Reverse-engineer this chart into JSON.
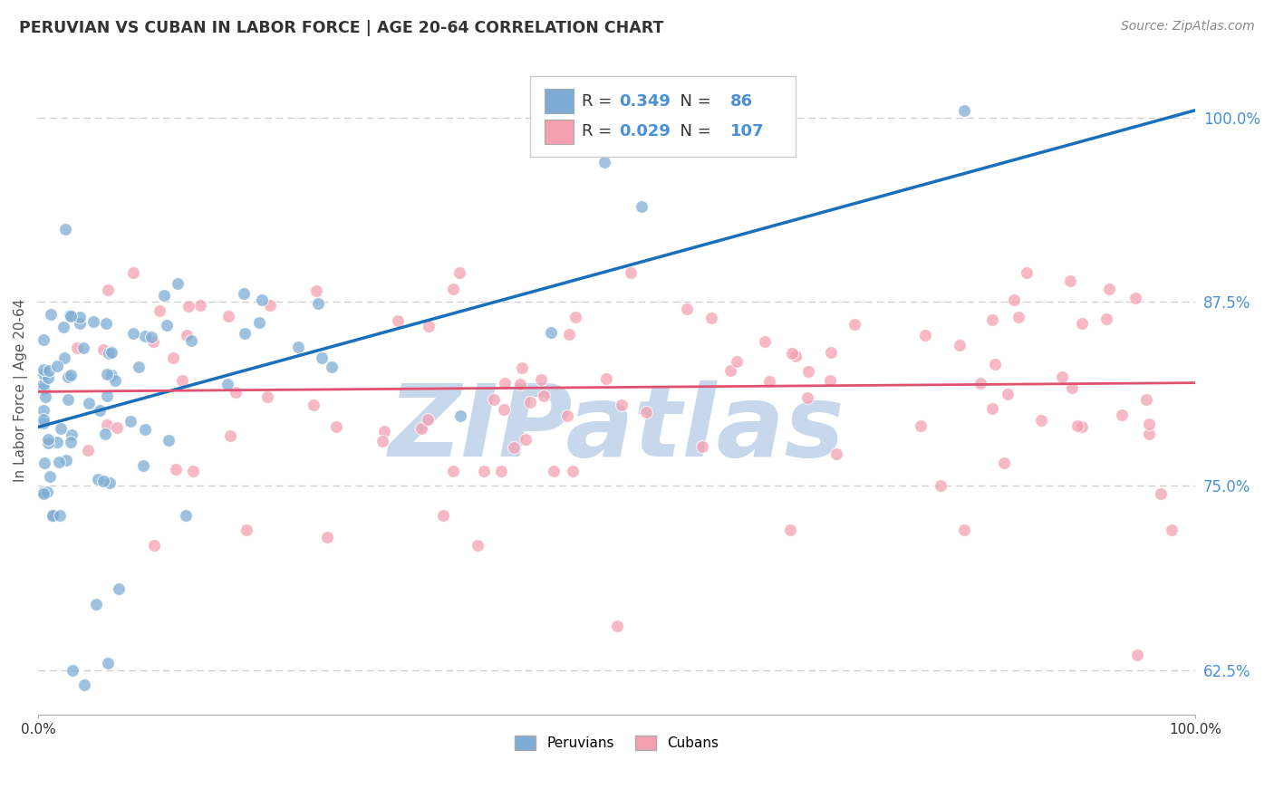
{
  "title": "PERUVIAN VS CUBAN IN LABOR FORCE | AGE 20-64 CORRELATION CHART",
  "source_text": "Source: ZipAtlas.com",
  "ylabel": "In Labor Force | Age 20-64",
  "xlim": [
    0.0,
    1.0
  ],
  "ylim": [
    0.595,
    1.035
  ],
  "yticks": [
    0.625,
    0.75,
    0.875,
    1.0
  ],
  "ytick_labels": [
    "62.5%",
    "75.0%",
    "87.5%",
    "100.0%"
  ],
  "legend_r_blue": "0.349",
  "legend_n_blue": "86",
  "legend_r_pink": "0.029",
  "legend_n_pink": "107",
  "peruvian_label": "Peruvians",
  "cuban_label": "Cubans",
  "blue_color": "#7dadd4",
  "blue_line_color": "#1a6fba",
  "pink_color": "#f4a0b0",
  "pink_line_color": "#e05070",
  "watermark": "ZIPatlas",
  "watermark_color": "#c8d8ec",
  "background_color": "#ffffff",
  "grid_color": "#cccccc",
  "title_color": "#333333",
  "peru_trend_x0": 0.0,
  "peru_trend_y0": 0.79,
  "peru_trend_x1": 1.0,
  "peru_trend_y1": 1.005,
  "cuba_trend_x0": 0.0,
  "cuba_trend_y0": 0.814,
  "cuba_trend_x1": 1.0,
  "cuba_trend_y1": 0.82
}
